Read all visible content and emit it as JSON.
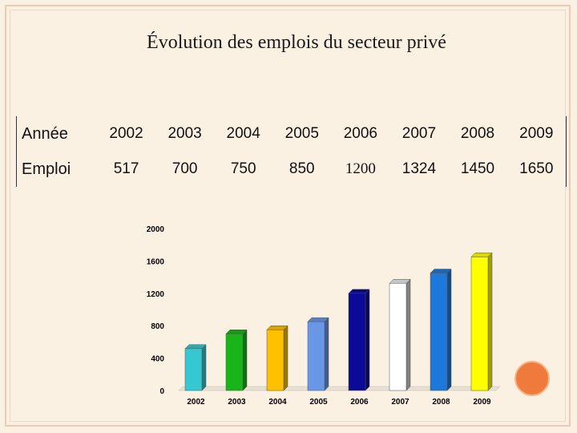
{
  "title": "Évolution des emplois du secteur privé",
  "table": {
    "row_labels": [
      "Année",
      "Emploi"
    ],
    "years": [
      "2002",
      "2003",
      "2004",
      "2005",
      "2006",
      "2007",
      "2008",
      "2009"
    ],
    "values": [
      "517",
      "700",
      "750",
      "850",
      "1200",
      "1324",
      "1450",
      "1650"
    ]
  },
  "chart_data": {
    "type": "bar",
    "title": "",
    "categories": [
      "2002",
      "2003",
      "2004",
      "2005",
      "2006",
      "2007",
      "2008",
      "2009"
    ],
    "values": [
      517,
      700,
      750,
      850,
      1200,
      1324,
      1450,
      1650
    ],
    "ylim": [
      0,
      2000
    ],
    "yticks": [
      "0",
      "400",
      "800",
      "1200",
      "1600",
      "2000"
    ],
    "colors": [
      "#36c8d0",
      "#18b418",
      "#ffc000",
      "#6a96e6",
      "#0a0a96",
      "#ffffff",
      "#1e78dc",
      "#ffff00"
    ],
    "grid": false,
    "legend": "none"
  }
}
